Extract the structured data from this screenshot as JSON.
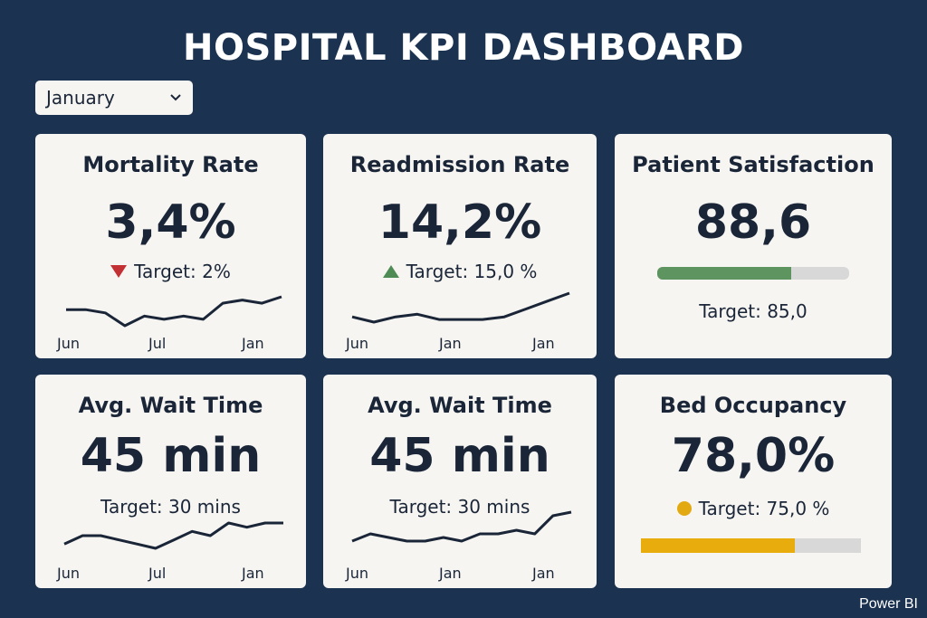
{
  "header": {
    "title": "HOSPITAL KPI DASHBOARD"
  },
  "filter": {
    "selected": "January",
    "icon": "chevron-down-icon"
  },
  "cards": {
    "mortality": {
      "title": "Mortality Rate",
      "value": "3,4%",
      "target": "Target: 2%",
      "indicator": "down-triangle",
      "indicator_color": "#c33034",
      "x_labels": [
        "Jun",
        "Jul",
        "Jan"
      ],
      "trend": [
        3.6,
        3.6,
        3.5,
        3.1,
        3.4,
        3.3,
        3.4,
        3.3,
        3.8,
        3.9,
        3.8,
        4.0
      ]
    },
    "readmission": {
      "title": "Readmission Rate",
      "value": "14,2%",
      "target": "Target: 15,0 %",
      "indicator": "up-triangle",
      "indicator_color": "#4f8b55",
      "x_labels": [
        "Jun",
        "Jan",
        "Jan"
      ],
      "trend": [
        13.6,
        13.4,
        13.6,
        13.7,
        13.5,
        13.5,
        13.5,
        13.6,
        13.9,
        14.2,
        14.5
      ]
    },
    "satisfaction": {
      "title": "Patient Satisfaction",
      "value": "88,6",
      "target": "Target: 85,0",
      "progress": 0.7,
      "progress_color": "#5e9460"
    },
    "wait_time_1": {
      "title": "Avg. Wait Time",
      "value": "45 min",
      "target": "Target: 30 mins",
      "x_labels": [
        "Jun",
        "Jul",
        "Jan"
      ],
      "trend": [
        40,
        42,
        42,
        41,
        40,
        39,
        41,
        43,
        42,
        45,
        44,
        45,
        45
      ]
    },
    "wait_time_2": {
      "title": "Avg. Wait Time",
      "value": "45 min",
      "target": "Target: 30 mins",
      "x_labels": [
        "Jun",
        "Jan",
        "Jan"
      ],
      "trend": [
        40,
        42,
        41,
        40,
        40,
        41,
        40,
        42,
        42,
        43,
        42,
        47,
        48
      ]
    },
    "bed_occupancy": {
      "title": "Bed Occupancy",
      "value": "78,0%",
      "target": "Target: 75,0 %",
      "indicator": "circle",
      "indicator_color": "#e2a912",
      "progress": 0.7,
      "progress_color": "#e8ac0c"
    }
  },
  "footer": {
    "brand": "Power BI"
  }
}
